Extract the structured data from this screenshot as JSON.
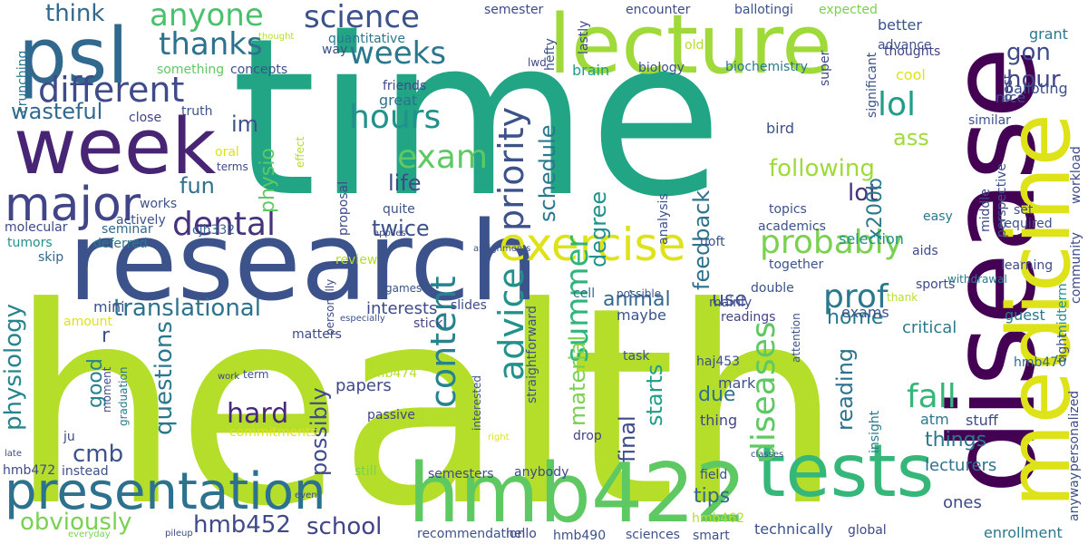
{
  "words": [
    {
      "text": "health",
      "color": "#b5de2b"
    },
    {
      "text": "time",
      "color": "#21a585"
    },
    {
      "text": "disease",
      "color": "#440154"
    },
    {
      "text": "research",
      "color": "#3b528b"
    },
    {
      "text": "medicine",
      "color": "#dde318"
    },
    {
      "text": "week",
      "color": "#482475"
    },
    {
      "text": "lecture",
      "color": "#9fda3a"
    },
    {
      "text": "psl",
      "color": "#31688e"
    },
    {
      "text": "hmb422",
      "color": "#5ec962"
    },
    {
      "text": "tests",
      "color": "#35b779"
    },
    {
      "text": "exercise",
      "color": "#dde318"
    },
    {
      "text": "presentation",
      "color": "#2c728e"
    },
    {
      "text": "major",
      "color": "#414487"
    },
    {
      "text": "different",
      "color": "#3e4a89"
    },
    {
      "text": "anyone",
      "color": "#4ac16d"
    },
    {
      "text": "science",
      "color": "#3b528b"
    },
    {
      "text": "thanks",
      "color": "#2c728e"
    },
    {
      "text": "weeks",
      "color": "#2a788e"
    },
    {
      "text": "think",
      "color": "#31688e"
    },
    {
      "text": "priority",
      "color": "#3b528b"
    },
    {
      "text": "hours",
      "color": "#21918c"
    },
    {
      "text": "exam",
      "color": "#5ec962"
    },
    {
      "text": "dental",
      "color": "#46337e"
    },
    {
      "text": "probably",
      "color": "#7ad151"
    },
    {
      "text": "fall",
      "color": "#35b779"
    },
    {
      "text": "prof",
      "color": "#2a788e"
    },
    {
      "text": "lol",
      "color": "#1f9e89"
    },
    {
      "text": "hour",
      "color": "#414487"
    },
    {
      "text": "gon",
      "color": "#3e4a89"
    },
    {
      "text": "content",
      "color": "#26828e"
    },
    {
      "text": "advice",
      "color": "#21918c"
    },
    {
      "text": "summer",
      "color": "#2fb47c"
    },
    {
      "text": "diseases",
      "color": "#5ec962"
    },
    {
      "text": "translational",
      "color": "#2c728e"
    },
    {
      "text": "questions",
      "color": "#2a788e"
    },
    {
      "text": "physiology",
      "color": "#25848e"
    },
    {
      "text": "hard",
      "color": "#482878"
    },
    {
      "text": "cmb",
      "color": "#3b528b"
    },
    {
      "text": "hmb452",
      "color": "#3e4a89"
    },
    {
      "text": "obviously",
      "color": "#7ad151"
    },
    {
      "text": "school",
      "color": "#414487"
    },
    {
      "text": "wasteful",
      "color": "#31688e"
    },
    {
      "text": "fun",
      "color": "#2c728e"
    },
    {
      "text": "im",
      "color": "#3b528b"
    },
    {
      "text": "physio",
      "color": "#5ec962"
    },
    {
      "text": "life",
      "color": "#3e4a89"
    },
    {
      "text": "twice",
      "color": "#3b528b"
    },
    {
      "text": "schedule",
      "color": "#2a788e"
    },
    {
      "text": "degree",
      "color": "#21918c"
    },
    {
      "text": "feedback",
      "color": "#2c728e"
    },
    {
      "text": "following",
      "color": "#a0da39"
    },
    {
      "text": "lot",
      "color": "#46337e"
    },
    {
      "text": "ass",
      "color": "#a0da39"
    },
    {
      "text": "x200b",
      "color": "#2a788e"
    },
    {
      "text": "animal",
      "color": "#31688e"
    },
    {
      "text": "home",
      "color": "#2a788e"
    },
    {
      "text": "use",
      "color": "#3b528b"
    },
    {
      "text": "possibly",
      "color": "#3e4a89"
    },
    {
      "text": "good",
      "color": "#26828e"
    },
    {
      "text": "material",
      "color": "#7ad151"
    },
    {
      "text": "final",
      "color": "#3e4a89"
    },
    {
      "text": "starts",
      "color": "#1f9e89"
    },
    {
      "text": "due",
      "color": "#2c728e"
    },
    {
      "text": "reading",
      "color": "#2c728e"
    },
    {
      "text": "tips",
      "color": "#31688e"
    },
    {
      "text": "things",
      "color": "#2a788e"
    },
    {
      "text": "lecturers",
      "color": "#2c728e"
    },
    {
      "text": "papers",
      "color": "#3e4a89"
    },
    {
      "text": "interests",
      "color": "#3e4a89"
    },
    {
      "text": "mini",
      "color": "#3b528b"
    },
    {
      "text": "r",
      "color": "#3b528b"
    },
    {
      "text": "maybe",
      "color": "#3b528b"
    },
    {
      "text": "thing",
      "color": "#414487"
    },
    {
      "text": "mark",
      "color": "#3b528b"
    },
    {
      "text": "stuff",
      "color": "#3e4a89"
    },
    {
      "text": "atm",
      "color": "#2a788e"
    },
    {
      "text": "exams",
      "color": "#3b528b"
    },
    {
      "text": "critical",
      "color": "#2a788e"
    },
    {
      "text": "guest",
      "color": "#2a788e"
    },
    {
      "text": "ones",
      "color": "#3e4a89"
    },
    {
      "text": "enrollment",
      "color": "#2a788e"
    },
    {
      "text": "technically",
      "color": "#3b528b"
    },
    {
      "text": "sciences",
      "color": "#3b528b"
    },
    {
      "text": "smart",
      "color": "#3b528b"
    },
    {
      "text": "global",
      "color": "#3e4a89"
    },
    {
      "text": "better",
      "color": "#3b528b"
    },
    {
      "text": "advance",
      "color": "#3b528b"
    },
    {
      "text": "grant",
      "color": "#2a788e"
    },
    {
      "text": "thoughts",
      "color": "#414487"
    },
    {
      "text": "nice",
      "color": "#3e4a89"
    },
    {
      "text": "cool",
      "color": "#dde318"
    },
    {
      "text": "brain",
      "color": "#1f9e89"
    },
    {
      "text": "great",
      "color": "#2c728e"
    },
    {
      "text": "oral",
      "color": "#dde318"
    },
    {
      "text": "review",
      "color": "#b5de2b"
    },
    {
      "text": "sports",
      "color": "#3e4a89"
    },
    {
      "text": "home",
      "color": "#2a788e"
    },
    {
      "text": "readings",
      "color": "#414487"
    },
    {
      "text": "mainly",
      "color": "#3e4a89"
    },
    {
      "text": "double",
      "color": "#3b528b"
    },
    {
      "text": "cell",
      "color": "#31688e"
    },
    {
      "text": "possible",
      "color": "#3b528b"
    },
    {
      "text": "slides",
      "color": "#3e4a89"
    },
    {
      "text": "stick",
      "color": "#414487"
    },
    {
      "text": "matters",
      "color": "#3e4a89"
    },
    {
      "text": "task",
      "color": "#3b528b"
    },
    {
      "text": "haj453",
      "color": "#3b528b"
    },
    {
      "text": "hmb474",
      "color": "#b5de2b"
    },
    {
      "text": "hmb462",
      "color": "#b5de2b"
    },
    {
      "text": "hmb470",
      "color": "#31688e"
    },
    {
      "text": "hmb472",
      "color": "#3e4a89"
    },
    {
      "text": "hmb490",
      "color": "#3b528b"
    },
    {
      "text": "cjh332",
      "color": "#31688e"
    },
    {
      "text": "seminar",
      "color": "#31688e"
    },
    {
      "text": "deferred",
      "color": "#2a788e"
    },
    {
      "text": "tumors",
      "color": "#21918c"
    },
    {
      "text": "molecular",
      "color": "#3e4a89"
    },
    {
      "text": "skip",
      "color": "#31688e"
    },
    {
      "text": "works",
      "color": "#3b528b"
    },
    {
      "text": "actively",
      "color": "#3b528b"
    },
    {
      "text": "terms",
      "color": "#3e4a89"
    },
    {
      "text": "truth",
      "color": "#3b528b"
    },
    {
      "text": "close",
      "color": "#414487"
    },
    {
      "text": "quantitative",
      "color": "#2a788e"
    },
    {
      "text": "something",
      "color": "#5ec962"
    },
    {
      "text": "concepts",
      "color": "#3b528b"
    },
    {
      "text": "friends",
      "color": "#3e4a89"
    },
    {
      "text": "way",
      "color": "#3b528b"
    },
    {
      "text": "crunching",
      "color": "#2a788e"
    },
    {
      "text": "semester",
      "color": "#3e4a89"
    },
    {
      "text": "encounter",
      "color": "#3e4a89"
    },
    {
      "text": "ballotingi",
      "color": "#3b528b"
    },
    {
      "text": "expected",
      "color": "#7ad151"
    },
    {
      "text": "biology",
      "color": "#3b528b"
    },
    {
      "text": "biochemistry",
      "color": "#2a788e"
    },
    {
      "text": "lastly",
      "color": "#3e4a89"
    },
    {
      "text": "hefty",
      "color": "#3b528b"
    },
    {
      "text": "old",
      "color": "#b5de2b"
    },
    {
      "text": "lwd",
      "color": "#3e4a89"
    },
    {
      "text": "super",
      "color": "#3e4a89"
    },
    {
      "text": "significant",
      "color": "#3b528b"
    },
    {
      "text": "best",
      "color": "#3e4a89"
    },
    {
      "text": "balloting",
      "color": "#3b528b"
    },
    {
      "text": "workload",
      "color": "#3e4a89"
    },
    {
      "text": "community",
      "color": "#3e4a89"
    },
    {
      "text": "similar",
      "color": "#3b528b"
    },
    {
      "text": "perspective",
      "color": "#3b528b"
    },
    {
      "text": "set",
      "color": "#3e4a89"
    },
    {
      "text": "required",
      "color": "#3b528b"
    },
    {
      "text": "learning",
      "color": "#3e4a89"
    },
    {
      "text": "withdrawal",
      "color": "#2a788e"
    },
    {
      "text": "midterm",
      "color": "#21918c"
    },
    {
      "text": "tight",
      "color": "#3b528b"
    },
    {
      "text": "personalized",
      "color": "#3e4a89"
    },
    {
      "text": "anyway",
      "color": "#3b528b"
    },
    {
      "text": "bird",
      "color": "#3b528b"
    },
    {
      "text": "topics",
      "color": "#3b528b"
    },
    {
      "text": "easy",
      "color": "#2a788e"
    },
    {
      "text": "middle",
      "color": "#3e4a89"
    },
    {
      "text": "selection",
      "color": "#21918c"
    },
    {
      "text": "aids",
      "color": "#3e4a89"
    },
    {
      "text": "academics",
      "color": "#3b528b"
    },
    {
      "text": "uoft",
      "color": "#3b528b"
    },
    {
      "text": "together",
      "color": "#3b528b"
    },
    {
      "text": "thank",
      "color": "#b5de2b"
    },
    {
      "text": "analysis",
      "color": "#3b528b"
    },
    {
      "text": "proposal",
      "color": "#3e4a89"
    },
    {
      "text": "quite",
      "color": "#3b528b"
    },
    {
      "text": "applies",
      "color": "#3e4a89"
    },
    {
      "text": "assignments",
      "color": "#3b528b"
    },
    {
      "text": "effect",
      "color": "#b5de2b"
    },
    {
      "text": "thought",
      "color": "#b5de2b"
    },
    {
      "text": "amount",
      "color": "#dde318"
    },
    {
      "text": "personally",
      "color": "#3e4a89"
    },
    {
      "text": "especially",
      "color": "#3b528b"
    },
    {
      "text": "games",
      "color": "#3b528b"
    },
    {
      "text": "work",
      "color": "#414487"
    },
    {
      "text": "term",
      "color": "#3b528b"
    },
    {
      "text": "moment",
      "color": "#3e4a89"
    },
    {
      "text": "graduation",
      "color": "#2a788e"
    },
    {
      "text": "ju",
      "color": "#3e4a89"
    },
    {
      "text": "commitments",
      "color": "#dde318"
    },
    {
      "text": "passive",
      "color": "#414487"
    },
    {
      "text": "interested",
      "color": "#3b528b"
    },
    {
      "text": "right",
      "color": "#dde318"
    },
    {
      "text": "straightforward",
      "color": "#3b528b"
    },
    {
      "text": "drop",
      "color": "#414487"
    },
    {
      "text": "classes",
      "color": "#3b528b"
    },
    {
      "text": "insight",
      "color": "#2a788e"
    },
    {
      "text": "attention",
      "color": "#3b528b"
    },
    {
      "text": "late",
      "color": "#3e4a89"
    },
    {
      "text": "instead",
      "color": "#3b528b"
    },
    {
      "text": "still",
      "color": "#7ad151"
    },
    {
      "text": "even",
      "color": "#3e4a89"
    },
    {
      "text": "semesters",
      "color": "#3e4a89"
    },
    {
      "text": "anybody",
      "color": "#3e4a89"
    },
    {
      "text": "field",
      "color": "#3b528b"
    },
    {
      "text": "everyday",
      "color": "#7ad151"
    },
    {
      "text": "pileup",
      "color": "#3e4a89"
    },
    {
      "text": "recommendation",
      "color": "#3b528b"
    },
    {
      "text": "hello",
      "color": "#3e4a89"
    }
  ]
}
